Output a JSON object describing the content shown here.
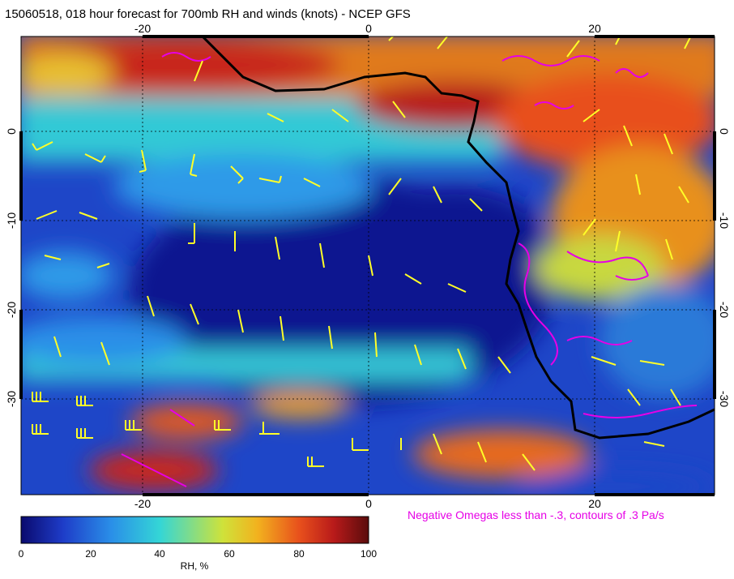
{
  "title": "15060518, 018 hour forecast for 700mb RH and winds (knots) - NCEP GFS",
  "note": "Negative Omegas less than -.3, contours of .3 Pa/s",
  "axes": {
    "lon_ticks": [
      "-20",
      "0",
      "20"
    ],
    "lat_ticks": [
      "0",
      "-10",
      "-20",
      "-30"
    ]
  },
  "colorbar": {
    "title": "RH, %",
    "ticks": [
      "0",
      "20",
      "40",
      "60",
      "80",
      "100"
    ],
    "colors": [
      "#0a0a6e",
      "#1e3cc8",
      "#2a8fe8",
      "#34d6d6",
      "#cfe23a",
      "#f2b21e",
      "#e8501c",
      "#b81a1a",
      "#5a0c0c"
    ]
  },
  "overlay_colors": {
    "coast": "#000000",
    "omega": "#e600e6",
    "wind": "#ffff28"
  }
}
